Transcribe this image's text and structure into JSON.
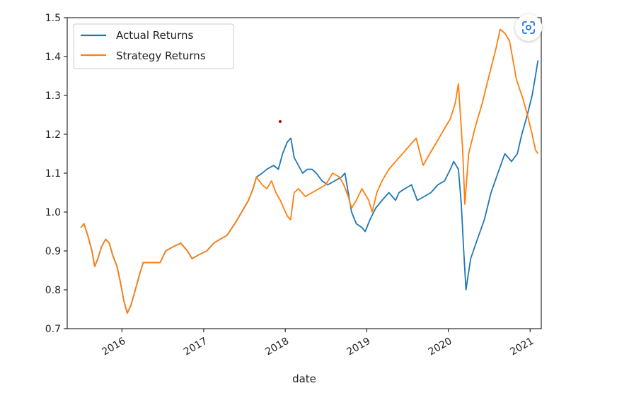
{
  "chart_data": {
    "type": "line",
    "xlabel": "date",
    "ylabel": "",
    "ylim": [
      0.7,
      1.5
    ],
    "xlim": [
      "2015-05-01",
      "2021-02-20"
    ],
    "yticks": [
      0.7,
      0.8,
      0.9,
      1.0,
      1.1,
      1.2,
      1.3,
      1.4,
      1.5
    ],
    "ytick_labels": [
      "0.7",
      "0.8",
      "0.9",
      "1.0",
      "1.1",
      "1.2",
      "1.3",
      "1.4",
      "1.5"
    ],
    "xticks": [
      "2016-01-01",
      "2017-01-01",
      "2018-01-01",
      "2019-01-01",
      "2020-01-01",
      "2021-01-01"
    ],
    "xtick_labels": [
      "2016",
      "2017",
      "2018",
      "2019",
      "2020",
      "2021"
    ],
    "legend": {
      "placement": "upper-left"
    },
    "grid": false,
    "series": [
      {
        "name": "Actual Returns",
        "color": "#1f77b4",
        "points": [
          [
            "2015-07-01",
            0.96
          ],
          [
            "2015-07-15",
            0.97
          ],
          [
            "2015-08-01",
            0.94
          ],
          [
            "2015-08-20",
            0.9
          ],
          [
            "2015-09-01",
            0.86
          ],
          [
            "2015-09-15",
            0.88
          ],
          [
            "2015-10-01",
            0.91
          ],
          [
            "2015-10-20",
            0.93
          ],
          [
            "2015-11-05",
            0.92
          ],
          [
            "2015-11-20",
            0.89
          ],
          [
            "2015-12-10",
            0.86
          ],
          [
            "2015-12-25",
            0.82
          ],
          [
            "2016-01-10",
            0.77
          ],
          [
            "2016-01-25",
            0.74
          ],
          [
            "2016-02-10",
            0.76
          ],
          [
            "2016-03-01",
            0.8
          ],
          [
            "2016-03-20",
            0.84
          ],
          [
            "2016-04-05",
            0.87
          ],
          [
            "2016-06-20",
            0.87
          ],
          [
            "2016-07-15",
            0.9
          ],
          [
            "2016-08-15",
            0.91
          ],
          [
            "2016-09-20",
            0.92
          ],
          [
            "2016-10-20",
            0.9
          ],
          [
            "2016-11-10",
            0.88
          ],
          [
            "2016-12-10",
            0.89
          ],
          [
            "2017-01-15",
            0.9
          ],
          [
            "2017-02-15",
            0.92
          ],
          [
            "2017-03-15",
            0.93
          ],
          [
            "2017-04-15",
            0.94
          ],
          [
            "2017-05-20",
            0.97
          ],
          [
            "2017-06-20",
            1.0
          ],
          [
            "2017-07-20",
            1.03
          ],
          [
            "2017-08-10",
            1.06
          ],
          [
            "2017-08-25",
            1.09
          ],
          [
            "2017-09-20",
            1.1
          ],
          [
            "2017-10-10",
            1.11
          ],
          [
            "2017-11-10",
            1.12
          ],
          [
            "2017-12-01",
            1.11
          ],
          [
            "2017-12-20",
            1.15
          ],
          [
            "2018-01-10",
            1.18
          ],
          [
            "2018-01-26",
            1.19
          ],
          [
            "2018-02-10",
            1.14
          ],
          [
            "2018-03-01",
            1.12
          ],
          [
            "2018-03-20",
            1.1
          ],
          [
            "2018-04-10",
            1.11
          ],
          [
            "2018-05-01",
            1.11
          ],
          [
            "2018-05-20",
            1.1
          ],
          [
            "2018-06-15",
            1.08
          ],
          [
            "2018-07-10",
            1.07
          ],
          [
            "2018-08-10",
            1.08
          ],
          [
            "2018-09-10",
            1.09
          ],
          [
            "2018-09-25",
            1.1
          ],
          [
            "2018-10-10",
            1.05
          ],
          [
            "2018-10-25",
            1.0
          ],
          [
            "2018-11-15",
            0.97
          ],
          [
            "2018-12-10",
            0.96
          ],
          [
            "2018-12-25",
            0.95
          ],
          [
            "2019-01-15",
            0.98
          ],
          [
            "2019-02-10",
            1.01
          ],
          [
            "2019-03-10",
            1.03
          ],
          [
            "2019-04-10",
            1.05
          ],
          [
            "2019-05-10",
            1.03
          ],
          [
            "2019-05-25",
            1.05
          ],
          [
            "2019-06-20",
            1.06
          ],
          [
            "2019-07-20",
            1.07
          ],
          [
            "2019-08-15",
            1.03
          ],
          [
            "2019-09-15",
            1.04
          ],
          [
            "2019-10-15",
            1.05
          ],
          [
            "2019-11-15",
            1.07
          ],
          [
            "2019-12-15",
            1.08
          ],
          [
            "2020-01-10",
            1.11
          ],
          [
            "2020-01-25",
            1.13
          ],
          [
            "2020-02-15",
            1.11
          ],
          [
            "2020-02-28",
            1.02
          ],
          [
            "2020-03-10",
            0.9
          ],
          [
            "2020-03-20",
            0.8
          ],
          [
            "2020-04-10",
            0.88
          ],
          [
            "2020-05-10",
            0.93
          ],
          [
            "2020-06-10",
            0.98
          ],
          [
            "2020-07-10",
            1.05
          ],
          [
            "2020-08-10",
            1.1
          ],
          [
            "2020-09-10",
            1.15
          ],
          [
            "2020-10-10",
            1.13
          ],
          [
            "2020-11-05",
            1.15
          ],
          [
            "2020-11-25",
            1.2
          ],
          [
            "2020-12-15",
            1.24
          ],
          [
            "2021-01-10",
            1.3
          ],
          [
            "2021-01-25",
            1.35
          ],
          [
            "2021-02-05",
            1.39
          ]
        ]
      },
      {
        "name": "Strategy Returns",
        "color": "#ff7f0e",
        "points": [
          [
            "2015-07-01",
            0.96
          ],
          [
            "2015-07-15",
            0.97
          ],
          [
            "2015-08-01",
            0.94
          ],
          [
            "2015-08-20",
            0.9
          ],
          [
            "2015-09-01",
            0.86
          ],
          [
            "2015-09-15",
            0.88
          ],
          [
            "2015-10-01",
            0.91
          ],
          [
            "2015-10-20",
            0.93
          ],
          [
            "2015-11-05",
            0.92
          ],
          [
            "2015-11-20",
            0.89
          ],
          [
            "2015-12-10",
            0.86
          ],
          [
            "2015-12-25",
            0.82
          ],
          [
            "2016-01-10",
            0.77
          ],
          [
            "2016-01-25",
            0.74
          ],
          [
            "2016-02-10",
            0.76
          ],
          [
            "2016-03-01",
            0.8
          ],
          [
            "2016-03-20",
            0.84
          ],
          [
            "2016-04-05",
            0.87
          ],
          [
            "2016-06-20",
            0.87
          ],
          [
            "2016-07-15",
            0.9
          ],
          [
            "2016-08-15",
            0.91
          ],
          [
            "2016-09-20",
            0.92
          ],
          [
            "2016-10-20",
            0.9
          ],
          [
            "2016-11-10",
            0.88
          ],
          [
            "2016-12-10",
            0.89
          ],
          [
            "2017-01-15",
            0.9
          ],
          [
            "2017-02-15",
            0.92
          ],
          [
            "2017-03-15",
            0.93
          ],
          [
            "2017-04-15",
            0.94
          ],
          [
            "2017-05-20",
            0.97
          ],
          [
            "2017-06-20",
            1.0
          ],
          [
            "2017-07-20",
            1.03
          ],
          [
            "2017-08-10",
            1.06
          ],
          [
            "2017-08-25",
            1.09
          ],
          [
            "2017-09-20",
            1.07
          ],
          [
            "2017-10-10",
            1.06
          ],
          [
            "2017-11-01",
            1.08
          ],
          [
            "2017-11-20",
            1.05
          ],
          [
            "2017-12-10",
            1.03
          ],
          [
            "2017-12-25",
            1.01
          ],
          [
            "2018-01-10",
            0.99
          ],
          [
            "2018-01-25",
            0.98
          ],
          [
            "2018-02-10",
            1.05
          ],
          [
            "2018-03-01",
            1.06
          ],
          [
            "2018-04-01",
            1.04
          ],
          [
            "2018-05-01",
            1.05
          ],
          [
            "2018-06-01",
            1.06
          ],
          [
            "2018-07-01",
            1.07
          ],
          [
            "2018-08-01",
            1.1
          ],
          [
            "2018-09-01",
            1.09
          ],
          [
            "2018-09-20",
            1.07
          ],
          [
            "2018-10-10",
            1.04
          ],
          [
            "2018-10-25",
            1.01
          ],
          [
            "2018-11-15",
            1.03
          ],
          [
            "2018-12-10",
            1.06
          ],
          [
            "2019-01-10",
            1.03
          ],
          [
            "2019-01-25",
            1.0
          ],
          [
            "2019-02-15",
            1.05
          ],
          [
            "2019-03-10",
            1.08
          ],
          [
            "2019-04-10",
            1.11
          ],
          [
            "2019-05-10",
            1.13
          ],
          [
            "2019-06-10",
            1.15
          ],
          [
            "2019-07-10",
            1.17
          ],
          [
            "2019-08-10",
            1.19
          ],
          [
            "2019-09-10",
            1.12
          ],
          [
            "2019-10-10",
            1.15
          ],
          [
            "2019-11-10",
            1.18
          ],
          [
            "2019-12-10",
            1.21
          ],
          [
            "2020-01-10",
            1.24
          ],
          [
            "2020-02-01",
            1.28
          ],
          [
            "2020-02-15",
            1.33
          ],
          [
            "2020-03-05",
            1.16
          ],
          [
            "2020-03-15",
            1.02
          ],
          [
            "2020-04-01",
            1.15
          ],
          [
            "2020-05-01",
            1.22
          ],
          [
            "2020-06-01",
            1.28
          ],
          [
            "2020-07-01",
            1.35
          ],
          [
            "2020-08-01",
            1.42
          ],
          [
            "2020-08-20",
            1.47
          ],
          [
            "2020-09-10",
            1.46
          ],
          [
            "2020-10-01",
            1.44
          ],
          [
            "2020-11-01",
            1.34
          ],
          [
            "2020-12-01",
            1.29
          ],
          [
            "2020-12-20",
            1.25
          ],
          [
            "2021-01-10",
            1.2
          ],
          [
            "2021-01-25",
            1.16
          ],
          [
            "2021-02-05",
            1.15
          ]
        ]
      }
    ]
  },
  "ui": {
    "scan_icon": "scan-icon"
  }
}
